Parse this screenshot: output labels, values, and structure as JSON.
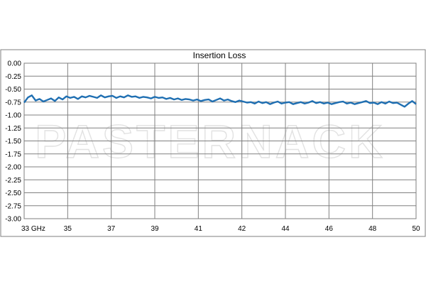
{
  "colors": {
    "series": "#1f6fb2",
    "grid": "#808080",
    "border": "#7f7f7f",
    "watermark": "#e9e9e9"
  },
  "watermark": "PASTERNACK",
  "chart_data": {
    "type": "line",
    "title": "Insertion Loss",
    "xlabel": "",
    "ylabel": "",
    "xlim": [
      33,
      50
    ],
    "ylim": [
      -3.0,
      0.0
    ],
    "grid": true,
    "legend": "none",
    "x_tick_labels": [
      "33  GHz",
      "35",
      "37",
      "39",
      "41",
      "42",
      "44",
      "46",
      "48",
      "50"
    ],
    "y_ticks": [
      0.0,
      -0.25,
      -0.5,
      -0.75,
      -1.0,
      -1.25,
      -1.5,
      -1.75,
      -2.0,
      -2.25,
      -2.5,
      -2.75,
      -3.0
    ],
    "y_tick_labels": [
      "0.00",
      "-0.25",
      "-0.50",
      "-0.75",
      "-1.00",
      "-1.25",
      "-1.50",
      "-1.75",
      "-2.00",
      "-2.25",
      "-2.50",
      "-2.75",
      "-3.00"
    ],
    "series": [
      {
        "values": [
          -0.76,
          -0.66,
          -0.62,
          -0.72,
          -0.69,
          -0.74,
          -0.71,
          -0.68,
          -0.73,
          -0.66,
          -0.7,
          -0.64,
          -0.67,
          -0.65,
          -0.69,
          -0.64,
          -0.66,
          -0.63,
          -0.65,
          -0.67,
          -0.62,
          -0.66,
          -0.64,
          -0.63,
          -0.67,
          -0.64,
          -0.66,
          -0.62,
          -0.65,
          -0.64,
          -0.67,
          -0.65,
          -0.66,
          -0.68,
          -0.65,
          -0.67,
          -0.66,
          -0.69,
          -0.67,
          -0.7,
          -0.68,
          -0.71,
          -0.69,
          -0.7,
          -0.72,
          -0.7,
          -0.73,
          -0.71,
          -0.7,
          -0.74,
          -0.71,
          -0.68,
          -0.72,
          -0.7,
          -0.73,
          -0.75,
          -0.72,
          -0.74,
          -0.76,
          -0.75,
          -0.78,
          -0.74,
          -0.77,
          -0.75,
          -0.79,
          -0.76,
          -0.74,
          -0.78,
          -0.76,
          -0.75,
          -0.79,
          -0.77,
          -0.75,
          -0.78,
          -0.76,
          -0.73,
          -0.77,
          -0.75,
          -0.78,
          -0.76,
          -0.79,
          -0.77,
          -0.75,
          -0.74,
          -0.78,
          -0.76,
          -0.79,
          -0.77,
          -0.75,
          -0.73,
          -0.77,
          -0.76,
          -0.79,
          -0.75,
          -0.78,
          -0.74,
          -0.77,
          -0.76,
          -0.8,
          -0.84,
          -0.78,
          -0.73,
          -0.79
        ]
      }
    ]
  }
}
